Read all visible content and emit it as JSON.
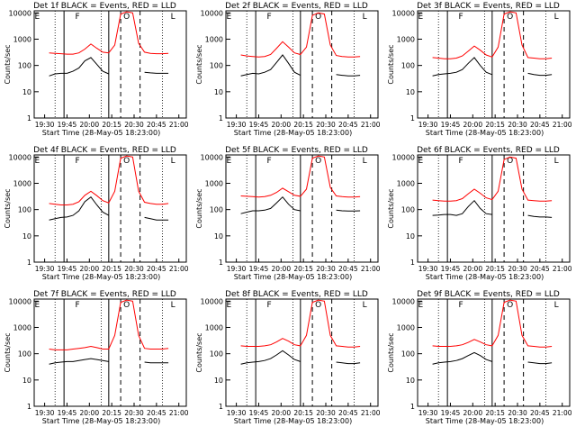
{
  "figure": {
    "start_time_label": "Start Time (28-May-05 18:23:00)",
    "ylabel": "Counts/sec"
  },
  "chart_data": [
    {
      "type": "line",
      "title": "Det 1f BLACK = Events, RED = LLD",
      "markers": [
        "E",
        "F",
        "O",
        "L"
      ],
      "x_ticks": [
        "19:30",
        "19:45",
        "20:00",
        "20:15",
        "20:30",
        "20:45",
        "21:00"
      ],
      "y_ticks": [
        "1",
        "10",
        "100",
        "1000",
        "10000"
      ],
      "yscale": "log",
      "ylim": [
        1,
        12000
      ],
      "x": [
        "19:33",
        "19:37",
        "19:41",
        "19:45",
        "19:49",
        "19:53",
        "19:57",
        "20:01",
        "20:05",
        "20:09",
        "20:13",
        "20:17",
        "20:21",
        "20:25",
        "20:29",
        "20:33",
        "20:37",
        "20:41",
        "20:45",
        "20:49",
        "20:53"
      ],
      "series": [
        {
          "color": "#ff0000",
          "values": [
            300,
            290,
            280,
            270,
            270,
            300,
            420,
            650,
            450,
            320,
            300,
            600,
            9000,
            11000,
            10000,
            700,
            320,
            290,
            280,
            280,
            290
          ]
        },
        {
          "color": "#000000",
          "values": [
            40,
            48,
            50,
            50,
            60,
            80,
            150,
            200,
            110,
            60,
            48,
            null,
            null,
            null,
            null,
            null,
            55,
            52,
            50,
            50,
            50
          ]
        }
      ]
    },
    {
      "type": "line",
      "title": "Det 2f BLACK = Events, RED = LLD",
      "markers": [
        "E",
        "F",
        "O",
        "L"
      ],
      "x_ticks": [
        "19:30",
        "19:45",
        "20:00",
        "20:15",
        "20:30",
        "20:45",
        "21:00"
      ],
      "y_ticks": [
        "1",
        "10",
        "100",
        "1000",
        "10000"
      ],
      "yscale": "log",
      "ylim": [
        1,
        12000
      ],
      "x": [
        "19:33",
        "19:37",
        "19:41",
        "19:45",
        "19:49",
        "19:53",
        "19:57",
        "20:01",
        "20:05",
        "20:09",
        "20:13",
        "20:17",
        "20:21",
        "20:25",
        "20:29",
        "20:33",
        "20:37",
        "20:41",
        "20:45",
        "20:49",
        "20:53"
      ],
      "series": [
        {
          "color": "#ff0000",
          "values": [
            250,
            230,
            220,
            210,
            220,
            260,
            450,
            800,
            500,
            300,
            260,
            500,
            8000,
            10000,
            9000,
            600,
            240,
            220,
            210,
            210,
            220
          ]
        },
        {
          "color": "#000000",
          "values": [
            40,
            45,
            50,
            48,
            55,
            70,
            130,
            250,
            120,
            55,
            42,
            null,
            null,
            null,
            null,
            null,
            45,
            42,
            40,
            40,
            42
          ]
        }
      ]
    },
    {
      "type": "line",
      "title": "Det 3f BLACK = Events, RED = LLD",
      "markers": [
        "E",
        "F",
        "O",
        "L"
      ],
      "x_ticks": [
        "19:30",
        "19:45",
        "20:00",
        "20:15",
        "20:30",
        "20:45",
        "21:00"
      ],
      "y_ticks": [
        "1",
        "10",
        "100",
        "1000",
        "10000"
      ],
      "yscale": "log",
      "ylim": [
        1,
        12000
      ],
      "x": [
        "19:33",
        "19:37",
        "19:41",
        "19:45",
        "19:49",
        "19:53",
        "19:57",
        "20:01",
        "20:05",
        "20:09",
        "20:13",
        "20:17",
        "20:21",
        "20:25",
        "20:29",
        "20:33",
        "20:37",
        "20:41",
        "20:45",
        "20:49",
        "20:53"
      ],
      "series": [
        {
          "color": "#ff0000",
          "values": [
            200,
            190,
            180,
            180,
            190,
            230,
            350,
            550,
            380,
            250,
            210,
            500,
            9000,
            11000,
            10000,
            600,
            200,
            190,
            180,
            180,
            190
          ]
        },
        {
          "color": "#000000",
          "values": [
            40,
            45,
            48,
            50,
            55,
            70,
            120,
            200,
            100,
            55,
            45,
            null,
            null,
            null,
            null,
            null,
            50,
            45,
            42,
            42,
            45
          ]
        }
      ]
    },
    {
      "type": "line",
      "title": "Det 4f BLACK = Events, RED = LLD",
      "markers": [
        "E",
        "F",
        "O",
        "L"
      ],
      "x_ticks": [
        "19:30",
        "19:45",
        "20:00",
        "20:15",
        "20:30",
        "20:45",
        "21:00"
      ],
      "y_ticks": [
        "1",
        "10",
        "100",
        "1000",
        "10000"
      ],
      "yscale": "log",
      "ylim": [
        1,
        12000
      ],
      "x": [
        "19:33",
        "19:37",
        "19:41",
        "19:45",
        "19:49",
        "19:53",
        "19:57",
        "20:01",
        "20:05",
        "20:09",
        "20:13",
        "20:17",
        "20:21",
        "20:25",
        "20:29",
        "20:33",
        "20:37",
        "20:41",
        "20:45",
        "20:49",
        "20:53"
      ],
      "series": [
        {
          "color": "#ff0000",
          "values": [
            170,
            160,
            150,
            150,
            160,
            200,
            350,
            500,
            340,
            220,
            180,
            500,
            9000,
            11000,
            10000,
            500,
            190,
            170,
            160,
            160,
            170
          ]
        },
        {
          "color": "#000000",
          "values": [
            40,
            45,
            50,
            52,
            60,
            90,
            200,
            300,
            150,
            80,
            60,
            null,
            null,
            null,
            null,
            null,
            50,
            45,
            40,
            40,
            40
          ]
        }
      ]
    },
    {
      "type": "line",
      "title": "Det 5f BLACK = Events, RED = LLD",
      "markers": [
        "E",
        "F",
        "O",
        "L"
      ],
      "x_ticks": [
        "19:30",
        "19:45",
        "20:00",
        "20:15",
        "20:30",
        "20:45",
        "21:00"
      ],
      "y_ticks": [
        "1",
        "10",
        "100",
        "1000",
        "10000"
      ],
      "yscale": "log",
      "ylim": [
        1,
        12000
      ],
      "x": [
        "19:33",
        "19:37",
        "19:41",
        "19:45",
        "19:49",
        "19:53",
        "19:57",
        "20:01",
        "20:05",
        "20:09",
        "20:13",
        "20:17",
        "20:21",
        "20:25",
        "20:29",
        "20:33",
        "20:37",
        "20:41",
        "20:45",
        "20:49",
        "20:53"
      ],
      "series": [
        {
          "color": "#ff0000",
          "values": [
            330,
            320,
            310,
            300,
            310,
            350,
            450,
            650,
            480,
            350,
            320,
            600,
            9000,
            11000,
            10000,
            700,
            330,
            310,
            300,
            300,
            310
          ]
        },
        {
          "color": "#000000",
          "values": [
            70,
            80,
            90,
            90,
            95,
            110,
            180,
            300,
            160,
            100,
            90,
            null,
            null,
            null,
            null,
            null,
            95,
            90,
            88,
            88,
            90
          ]
        }
      ]
    },
    {
      "type": "line",
      "title": "Det 6f BLACK = Events, RED = LLD",
      "markers": [
        "E",
        "F",
        "O",
        "L"
      ],
      "x_ticks": [
        "19:30",
        "19:45",
        "20:00",
        "20:15",
        "20:30",
        "20:45",
        "21:00"
      ],
      "y_ticks": [
        "1",
        "10",
        "100",
        "1000",
        "10000"
      ],
      "yscale": "log",
      "ylim": [
        1,
        12000
      ],
      "x": [
        "19:33",
        "19:37",
        "19:41",
        "19:45",
        "19:49",
        "19:53",
        "19:57",
        "20:01",
        "20:05",
        "20:09",
        "20:13",
        "20:17",
        "20:21",
        "20:25",
        "20:29",
        "20:33",
        "20:37",
        "20:41",
        "20:45",
        "20:49",
        "20:53"
      ],
      "series": [
        {
          "color": "#ff0000",
          "values": [
            230,
            220,
            210,
            210,
            220,
            260,
            400,
            600,
            420,
            280,
            240,
            500,
            8000,
            10000,
            9000,
            600,
            230,
            220,
            210,
            210,
            220
          ]
        },
        {
          "color": "#000000",
          "values": [
            60,
            62,
            65,
            65,
            60,
            70,
            130,
            220,
            110,
            70,
            65,
            null,
            null,
            null,
            null,
            null,
            60,
            55,
            52,
            52,
            50
          ]
        }
      ]
    },
    {
      "type": "line",
      "title": "Det 7f BLACK = Events, RED = LLD",
      "markers": [
        "E",
        "F",
        "O",
        "L"
      ],
      "x_ticks": [
        "19:30",
        "19:45",
        "20:00",
        "20:15",
        "20:30",
        "20:45",
        "21:00"
      ],
      "y_ticks": [
        "1",
        "10",
        "100",
        "1000",
        "10000"
      ],
      "yscale": "log",
      "ylim": [
        1,
        12000
      ],
      "x": [
        "19:33",
        "19:37",
        "19:41",
        "19:45",
        "19:49",
        "19:53",
        "19:57",
        "20:01",
        "20:05",
        "20:09",
        "20:13",
        "20:17",
        "20:21",
        "20:25",
        "20:29",
        "20:33",
        "20:37",
        "20:41",
        "20:45",
        "20:49",
        "20:53"
      ],
      "series": [
        {
          "color": "#ff0000",
          "values": [
            150,
            140,
            140,
            140,
            150,
            160,
            170,
            190,
            170,
            150,
            150,
            500,
            9000,
            11000,
            10000,
            500,
            160,
            150,
            150,
            150,
            160
          ]
        },
        {
          "color": "#000000",
          "values": [
            40,
            45,
            48,
            50,
            50,
            55,
            60,
            65,
            60,
            55,
            50,
            null,
            null,
            null,
            null,
            null,
            48,
            45,
            45,
            45,
            45
          ]
        }
      ]
    },
    {
      "type": "line",
      "title": "Det 8f BLACK = Events, RED = LLD",
      "markers": [
        "E",
        "F",
        "O",
        "L"
      ],
      "x_ticks": [
        "19:30",
        "19:45",
        "20:00",
        "20:15",
        "20:30",
        "20:45",
        "21:00"
      ],
      "y_ticks": [
        "1",
        "10",
        "100",
        "1000",
        "10000"
      ],
      "yscale": "log",
      "ylim": [
        1,
        12000
      ],
      "x": [
        "19:33",
        "19:37",
        "19:41",
        "19:45",
        "19:49",
        "19:53",
        "19:57",
        "20:01",
        "20:05",
        "20:09",
        "20:13",
        "20:17",
        "20:21",
        "20:25",
        "20:29",
        "20:33",
        "20:37",
        "20:41",
        "20:45",
        "20:49",
        "20:53"
      ],
      "series": [
        {
          "color": "#ff0000",
          "values": [
            200,
            190,
            190,
            190,
            200,
            220,
            280,
            380,
            300,
            220,
            200,
            500,
            9000,
            11000,
            10000,
            500,
            200,
            190,
            180,
            180,
            190
          ]
        },
        {
          "color": "#000000",
          "values": [
            40,
            45,
            48,
            50,
            55,
            65,
            90,
            130,
            90,
            60,
            50,
            null,
            null,
            null,
            null,
            null,
            48,
            45,
            42,
            42,
            45
          ]
        }
      ]
    },
    {
      "type": "line",
      "title": "Det 9f BLACK = Events, RED = LLD",
      "markers": [
        "E",
        "F",
        "O",
        "L"
      ],
      "x_ticks": [
        "19:30",
        "19:45",
        "20:00",
        "20:15",
        "20:30",
        "20:45",
        "21:00"
      ],
      "y_ticks": [
        "1",
        "10",
        "100",
        "1000",
        "10000"
      ],
      "yscale": "log",
      "ylim": [
        1,
        12000
      ],
      "x": [
        "19:33",
        "19:37",
        "19:41",
        "19:45",
        "19:49",
        "19:53",
        "19:57",
        "20:01",
        "20:05",
        "20:09",
        "20:13",
        "20:17",
        "20:21",
        "20:25",
        "20:29",
        "20:33",
        "20:37",
        "20:41",
        "20:45",
        "20:49",
        "20:53"
      ],
      "series": [
        {
          "color": "#ff0000",
          "values": [
            200,
            190,
            190,
            190,
            200,
            220,
            270,
            350,
            280,
            220,
            200,
            500,
            9000,
            11000,
            10000,
            500,
            200,
            190,
            180,
            180,
            190
          ]
        },
        {
          "color": "#000000",
          "values": [
            40,
            45,
            48,
            50,
            55,
            65,
            85,
            110,
            85,
            60,
            50,
            null,
            null,
            null,
            null,
            null,
            48,
            45,
            42,
            42,
            45
          ]
        }
      ]
    }
  ]
}
